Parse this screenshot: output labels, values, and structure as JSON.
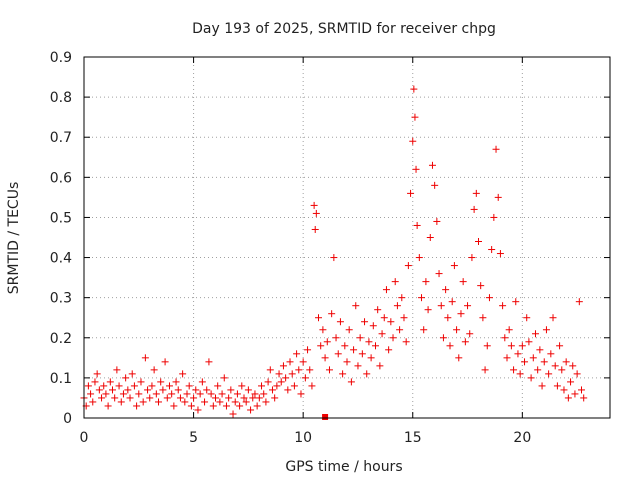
{
  "chart_data": {
    "type": "scatter",
    "title": "Day 193 of 2025, SRMTID for receiver chpg",
    "xlabel": "GPS time / hours",
    "ylabel": "SRMTID / TECUs",
    "xlim": [
      0,
      24
    ],
    "ylim": [
      0,
      0.9
    ],
    "x_ticks": [
      0,
      5,
      10,
      15,
      20
    ],
    "y_ticks": [
      0,
      0.1,
      0.2,
      0.3,
      0.4,
      0.5,
      0.6,
      0.7,
      0.8,
      0.9
    ],
    "x_tick_labels": [
      "0",
      "5",
      "10",
      "15",
      "20"
    ],
    "y_tick_labels": [
      "0",
      "0.1",
      "0.2",
      "0.3",
      "0.4",
      "0.5",
      "0.6",
      "0.7",
      "0.8",
      "0.9"
    ],
    "grid": true,
    "marker": "+",
    "series": [
      {
        "name": "SRMTID",
        "color": "#ee0000",
        "points": [
          [
            0.0,
            0.05
          ],
          [
            0.1,
            0.03
          ],
          [
            0.2,
            0.08
          ],
          [
            0.3,
            0.06
          ],
          [
            0.4,
            0.04
          ],
          [
            0.5,
            0.09
          ],
          [
            0.6,
            0.11
          ],
          [
            0.7,
            0.07
          ],
          [
            0.8,
            0.05
          ],
          [
            0.9,
            0.08
          ],
          [
            1.0,
            0.06
          ],
          [
            1.1,
            0.03
          ],
          [
            1.2,
            0.09
          ],
          [
            1.3,
            0.07
          ],
          [
            1.4,
            0.05
          ],
          [
            1.5,
            0.12
          ],
          [
            1.6,
            0.08
          ],
          [
            1.7,
            0.04
          ],
          [
            1.8,
            0.06
          ],
          [
            1.9,
            0.1
          ],
          [
            2.0,
            0.07
          ],
          [
            2.1,
            0.05
          ],
          [
            2.2,
            0.11
          ],
          [
            2.3,
            0.08
          ],
          [
            2.4,
            0.03
          ],
          [
            2.5,
            0.06
          ],
          [
            2.6,
            0.09
          ],
          [
            2.7,
            0.04
          ],
          [
            2.8,
            0.15
          ],
          [
            2.9,
            0.07
          ],
          [
            3.0,
            0.05
          ],
          [
            3.1,
            0.08
          ],
          [
            3.2,
            0.12
          ],
          [
            3.3,
            0.06
          ],
          [
            3.4,
            0.04
          ],
          [
            3.5,
            0.09
          ],
          [
            3.6,
            0.07
          ],
          [
            3.7,
            0.14
          ],
          [
            3.8,
            0.05
          ],
          [
            3.9,
            0.08
          ],
          [
            4.0,
            0.06
          ],
          [
            4.1,
            0.03
          ],
          [
            4.2,
            0.09
          ],
          [
            4.3,
            0.07
          ],
          [
            4.4,
            0.05
          ],
          [
            4.5,
            0.11
          ],
          [
            4.6,
            0.04
          ],
          [
            4.7,
            0.06
          ],
          [
            4.8,
            0.08
          ],
          [
            4.9,
            0.03
          ],
          [
            5.0,
            0.05
          ],
          [
            5.1,
            0.07
          ],
          [
            5.2,
            0.02
          ],
          [
            5.3,
            0.06
          ],
          [
            5.4,
            0.09
          ],
          [
            5.5,
            0.04
          ],
          [
            5.6,
            0.07
          ],
          [
            5.7,
            0.14
          ],
          [
            5.8,
            0.06
          ],
          [
            5.9,
            0.03
          ],
          [
            6.0,
            0.05
          ],
          [
            6.1,
            0.08
          ],
          [
            6.2,
            0.04
          ],
          [
            6.3,
            0.06
          ],
          [
            6.4,
            0.1
          ],
          [
            6.5,
            0.03
          ],
          [
            6.6,
            0.05
          ],
          [
            6.7,
            0.07
          ],
          [
            6.8,
            0.01
          ],
          [
            6.9,
            0.04
          ],
          [
            7.0,
            0.06
          ],
          [
            7.1,
            0.03
          ],
          [
            7.2,
            0.08
          ],
          [
            7.3,
            0.05
          ],
          [
            7.4,
            0.04
          ],
          [
            7.5,
            0.07
          ],
          [
            7.6,
            0.02
          ],
          [
            7.7,
            0.05
          ],
          [
            7.8,
            0.06
          ],
          [
            7.9,
            0.03
          ],
          [
            8.0,
            0.05
          ],
          [
            8.1,
            0.08
          ],
          [
            8.2,
            0.06
          ],
          [
            8.3,
            0.04
          ],
          [
            8.4,
            0.09
          ],
          [
            8.5,
            0.12
          ],
          [
            8.6,
            0.07
          ],
          [
            8.7,
            0.05
          ],
          [
            8.8,
            0.08
          ],
          [
            8.9,
            0.11
          ],
          [
            9.0,
            0.09
          ],
          [
            9.1,
            0.13
          ],
          [
            9.2,
            0.1
          ],
          [
            9.3,
            0.07
          ],
          [
            9.4,
            0.14
          ],
          [
            9.5,
            0.11
          ],
          [
            9.6,
            0.08
          ],
          [
            9.7,
            0.16
          ],
          [
            9.8,
            0.12
          ],
          [
            9.9,
            0.06
          ],
          [
            10.0,
            0.14
          ],
          [
            10.1,
            0.1
          ],
          [
            10.2,
            0.17
          ],
          [
            10.3,
            0.12
          ],
          [
            10.4,
            0.08
          ],
          [
            10.5,
            0.53
          ],
          [
            10.55,
            0.47
          ],
          [
            10.6,
            0.51
          ],
          [
            10.7,
            0.25
          ],
          [
            10.8,
            0.18
          ],
          [
            10.9,
            0.22
          ],
          [
            11.0,
            0.15
          ],
          [
            11.1,
            0.19
          ],
          [
            11.2,
            0.12
          ],
          [
            11.3,
            0.26
          ],
          [
            11.4,
            0.4
          ],
          [
            11.5,
            0.2
          ],
          [
            11.6,
            0.16
          ],
          [
            11.7,
            0.24
          ],
          [
            11.8,
            0.11
          ],
          [
            11.9,
            0.18
          ],
          [
            12.0,
            0.14
          ],
          [
            12.1,
            0.22
          ],
          [
            12.2,
            0.09
          ],
          [
            12.3,
            0.17
          ],
          [
            12.4,
            0.28
          ],
          [
            12.5,
            0.13
          ],
          [
            12.6,
            0.2
          ],
          [
            12.7,
            0.16
          ],
          [
            12.8,
            0.24
          ],
          [
            12.9,
            0.11
          ],
          [
            13.0,
            0.19
          ],
          [
            13.1,
            0.15
          ],
          [
            13.2,
            0.23
          ],
          [
            13.3,
            0.18
          ],
          [
            13.4,
            0.27
          ],
          [
            13.5,
            0.13
          ],
          [
            13.6,
            0.21
          ],
          [
            13.7,
            0.25
          ],
          [
            13.8,
            0.32
          ],
          [
            13.9,
            0.17
          ],
          [
            14.0,
            0.24
          ],
          [
            14.1,
            0.2
          ],
          [
            14.2,
            0.34
          ],
          [
            14.3,
            0.28
          ],
          [
            14.4,
            0.22
          ],
          [
            14.5,
            0.3
          ],
          [
            14.6,
            0.25
          ],
          [
            14.7,
            0.19
          ],
          [
            14.8,
            0.38
          ],
          [
            14.9,
            0.56
          ],
          [
            15.0,
            0.69
          ],
          [
            15.05,
            0.82
          ],
          [
            15.1,
            0.75
          ],
          [
            15.15,
            0.62
          ],
          [
            15.2,
            0.48
          ],
          [
            15.3,
            0.4
          ],
          [
            15.4,
            0.3
          ],
          [
            15.5,
            0.22
          ],
          [
            15.6,
            0.34
          ],
          [
            15.7,
            0.27
          ],
          [
            15.8,
            0.45
          ],
          [
            15.9,
            0.63
          ],
          [
            16.0,
            0.58
          ],
          [
            16.1,
            0.49
          ],
          [
            16.2,
            0.36
          ],
          [
            16.3,
            0.28
          ],
          [
            16.4,
            0.2
          ],
          [
            16.5,
            0.32
          ],
          [
            16.6,
            0.25
          ],
          [
            16.7,
            0.18
          ],
          [
            16.8,
            0.29
          ],
          [
            16.9,
            0.38
          ],
          [
            17.0,
            0.22
          ],
          [
            17.1,
            0.15
          ],
          [
            17.2,
            0.26
          ],
          [
            17.3,
            0.34
          ],
          [
            17.4,
            0.19
          ],
          [
            17.5,
            0.28
          ],
          [
            17.6,
            0.21
          ],
          [
            17.7,
            0.4
          ],
          [
            17.8,
            0.52
          ],
          [
            17.9,
            0.56
          ],
          [
            18.0,
            0.44
          ],
          [
            18.1,
            0.33
          ],
          [
            18.2,
            0.25
          ],
          [
            18.3,
            0.12
          ],
          [
            18.4,
            0.18
          ],
          [
            18.5,
            0.3
          ],
          [
            18.6,
            0.42
          ],
          [
            18.7,
            0.5
          ],
          [
            18.8,
            0.67
          ],
          [
            18.9,
            0.55
          ],
          [
            19.0,
            0.41
          ],
          [
            19.1,
            0.28
          ],
          [
            19.2,
            0.2
          ],
          [
            19.3,
            0.15
          ],
          [
            19.4,
            0.22
          ],
          [
            19.5,
            0.18
          ],
          [
            19.6,
            0.12
          ],
          [
            19.7,
            0.29
          ],
          [
            19.8,
            0.16
          ],
          [
            19.9,
            0.11
          ],
          [
            20.0,
            0.18
          ],
          [
            20.1,
            0.14
          ],
          [
            20.2,
            0.25
          ],
          [
            20.3,
            0.19
          ],
          [
            20.4,
            0.1
          ],
          [
            20.5,
            0.15
          ],
          [
            20.6,
            0.21
          ],
          [
            20.7,
            0.12
          ],
          [
            20.8,
            0.17
          ],
          [
            20.9,
            0.08
          ],
          [
            21.0,
            0.14
          ],
          [
            21.1,
            0.22
          ],
          [
            21.2,
            0.11
          ],
          [
            21.3,
            0.16
          ],
          [
            21.4,
            0.25
          ],
          [
            21.5,
            0.13
          ],
          [
            21.6,
            0.08
          ],
          [
            21.7,
            0.18
          ],
          [
            21.8,
            0.12
          ],
          [
            21.9,
            0.07
          ],
          [
            22.0,
            0.14
          ],
          [
            22.1,
            0.05
          ],
          [
            22.2,
            0.09
          ],
          [
            22.3,
            0.13
          ],
          [
            22.4,
            0.06
          ],
          [
            22.5,
            0.11
          ],
          [
            22.6,
            0.29
          ],
          [
            22.7,
            0.07
          ],
          [
            22.8,
            0.05
          ]
        ]
      }
    ],
    "annotations": [
      {
        "name": "square-marker",
        "x": 11.0,
        "y": 0.0,
        "color": "#ee0000"
      }
    ]
  }
}
